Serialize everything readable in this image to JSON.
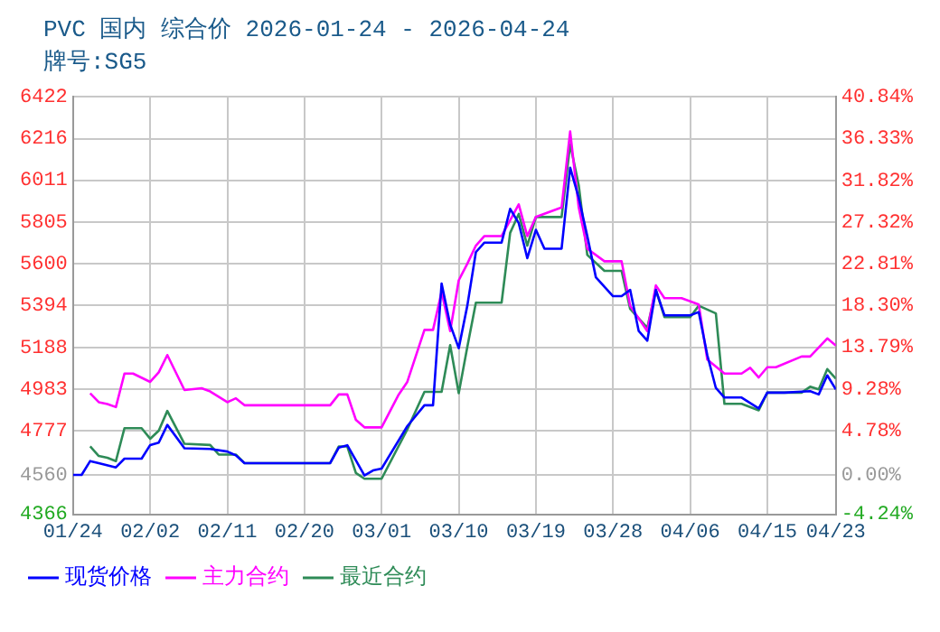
{
  "chart_data": {
    "type": "line",
    "title": "PVC 国内 综合价 2026-01-24 - 2026-04-24",
    "subtitle": "牌号:SG5",
    "xlim": [
      "--01-24",
      "--04-23"
    ],
    "xticks": [
      {
        "value": "--01-24",
        "label": "01/24"
      },
      {
        "value": "--02-02",
        "label": "02/02"
      },
      {
        "value": "--02-11",
        "label": "02/11"
      },
      {
        "value": "--02-20",
        "label": "02/20"
      },
      {
        "value": "--03-01",
        "label": "03/01"
      },
      {
        "value": "--03-10",
        "label": "03/10"
      },
      {
        "value": "--03-19",
        "label": "03/19"
      },
      {
        "value": "--03-28",
        "label": "03/28"
      },
      {
        "value": "--04-06",
        "label": "04/06"
      },
      {
        "value": "--04-15",
        "label": "04/15"
      },
      {
        "value": "--04-23",
        "label": "04/23"
      }
    ],
    "ylim": [
      4366,
      6422
    ],
    "yticks": [
      4366,
      4560,
      4777,
      4983,
      5188,
      5394,
      5600,
      5805,
      6011,
      6216,
      6422
    ],
    "y2lim": [
      -4.24,
      40.84
    ],
    "y2ticks": [
      {
        "value": -4.24,
        "label": "-4.24%"
      },
      {
        "value": 0,
        "label": "0.00%"
      },
      {
        "value": 4.78,
        "label": "4.78%"
      },
      {
        "value": 9.28,
        "label": "9.28%"
      },
      {
        "value": 13.79,
        "label": "13.79%"
      },
      {
        "value": 18.3,
        "label": "18.30%"
      },
      {
        "value": 22.81,
        "label": "22.81%"
      },
      {
        "value": 27.32,
        "label": "27.32%"
      },
      {
        "value": 31.82,
        "label": "31.82%"
      },
      {
        "value": 36.33,
        "label": "36.33%"
      },
      {
        "value": 40.84,
        "label": "40.84%"
      }
    ],
    "grid": true,
    "legend": "bottom",
    "marker": "none",
    "line_style": "solid",
    "series": [
      {
        "name": "现货价格",
        "color": "#0000ff",
        "x": [
          "--01-24",
          "--01-25",
          "--01-26",
          "--01-27",
          "--01-29",
          "--01-30",
          "--02-01",
          "--02-02",
          "--02-03",
          "--02-04",
          "--02-06",
          "--02-09",
          "--02-11",
          "--02-12",
          "--02-13",
          "--02-23",
          "--02-24",
          "--02-25",
          "--02-27",
          "--02-28",
          "--03-01",
          "--03-04",
          "--03-06",
          "--03-07",
          "--03-08",
          "--03-09",
          "--03-10",
          "--03-11",
          "--03-12",
          "--03-13",
          "--03-15",
          "--03-16",
          "--03-17",
          "--03-18",
          "--03-19",
          "--03-20",
          "--03-22",
          "--03-23",
          "--03-24",
          "--03-25",
          "--03-26",
          "--03-27",
          "--03-28",
          "--03-29",
          "--03-30",
          "--03-31",
          "--04-01",
          "--04-02",
          "--04-03",
          "--04-06",
          "--04-07",
          "--04-08",
          "--04-09",
          "--04-10",
          "--04-12",
          "--04-14",
          "--04-15",
          "--04-17",
          "--04-20",
          "--04-21",
          "--04-22",
          "--04-23"
        ],
        "values": [
          4560,
          4560,
          4628,
          4618,
          4597,
          4640,
          4640,
          4707,
          4719,
          4806,
          4691,
          4688,
          4675,
          4656,
          4618,
          4618,
          4694,
          4706,
          4557,
          4582,
          4591,
          4800,
          4903,
          4903,
          5502,
          5300,
          5184,
          5393,
          5657,
          5704,
          5704,
          5870,
          5800,
          5627,
          5767,
          5674,
          5674,
          6073,
          5924,
          5736,
          5533,
          5486,
          5440,
          5440,
          5471,
          5268,
          5221,
          5471,
          5346,
          5346,
          5362,
          5150,
          4988,
          4941,
          4941,
          4887,
          4965,
          4965,
          4972,
          4956,
          5050,
          4981
        ]
      },
      {
        "name": "主力合约",
        "color": "#ff00ff",
        "x": [
          "--01-26",
          "--01-27",
          "--01-28",
          "--01-29",
          "--01-30",
          "--01-31",
          "--02-02",
          "--02-03",
          "--02-04",
          "--02-06",
          "--02-08",
          "--02-09",
          "--02-11",
          "--02-12",
          "--02-13",
          "--02-23",
          "--02-24",
          "--02-25",
          "--02-26",
          "--02-27",
          "--03-01",
          "--03-03",
          "--03-04",
          "--03-06",
          "--03-07",
          "--03-08",
          "--03-09",
          "--03-10",
          "--03-11",
          "--03-12",
          "--03-13",
          "--03-15",
          "--03-17",
          "--03-18",
          "--03-19",
          "--03-22",
          "--03-23",
          "--03-24",
          "--03-25",
          "--03-27",
          "--03-29",
          "--03-30",
          "--04-01",
          "--04-02",
          "--04-03",
          "--04-05",
          "--04-07",
          "--04-08",
          "--04-10",
          "--04-12",
          "--04-13",
          "--04-14",
          "--04-15",
          "--04-16",
          "--04-19",
          "--04-20",
          "--04-22",
          "--04-23"
        ],
        "values": [
          4962,
          4918,
          4909,
          4894,
          5059,
          5059,
          5018,
          5065,
          5150,
          4978,
          4987,
          4971,
          4918,
          4937,
          4903,
          4903,
          4956,
          4956,
          4831,
          4794,
          4794,
          4956,
          5018,
          5274,
          5274,
          5461,
          5268,
          5518,
          5600,
          5689,
          5736,
          5736,
          5892,
          5736,
          5830,
          5877,
          6251,
          5877,
          5674,
          5612,
          5612,
          5393,
          5268,
          5493,
          5430,
          5430,
          5399,
          5128,
          5059,
          5059,
          5087,
          5040,
          5090,
          5090,
          5143,
          5143,
          5232,
          5197
        ]
      },
      {
        "name": "最近合约",
        "color": "#2e8b57",
        "x": [
          "--01-26",
          "--01-27",
          "--01-28",
          "--01-29",
          "--01-30",
          "--02-01",
          "--02-02",
          "--02-03",
          "--02-04",
          "--02-06",
          "--02-09",
          "--02-10",
          "--02-12",
          "--02-13",
          "--02-23",
          "--02-24",
          "--02-25",
          "--02-26",
          "--02-27",
          "--03-01",
          "--03-04",
          "--03-06",
          "--03-08",
          "--03-09",
          "--03-10",
          "--03-11",
          "--03-12",
          "--03-15",
          "--03-16",
          "--03-17",
          "--03-18",
          "--03-19",
          "--03-22",
          "--03-23",
          "--03-24",
          "--03-25",
          "--03-27",
          "--03-29",
          "--03-30",
          "--04-01",
          "--04-02",
          "--04-03",
          "--04-06",
          "--04-07",
          "--04-09",
          "--04-10",
          "--04-12",
          "--04-14",
          "--04-15",
          "--04-19",
          "--04-20",
          "--04-21",
          "--04-22",
          "--04-23"
        ],
        "values": [
          4700,
          4653,
          4644,
          4628,
          4790,
          4790,
          4738,
          4778,
          4875,
          4713,
          4707,
          4660,
          4660,
          4618,
          4618,
          4700,
          4700,
          4569,
          4541,
          4541,
          4784,
          4969,
          4969,
          5199,
          4962,
          5190,
          5408,
          5408,
          5752,
          5845,
          5689,
          5830,
          5830,
          6188,
          5986,
          5643,
          5565,
          5565,
          5377,
          5284,
          5471,
          5337,
          5337,
          5393,
          5355,
          4910,
          4910,
          4878,
          4965,
          4965,
          4994,
          4981,
          5081,
          5034
        ]
      }
    ]
  }
}
